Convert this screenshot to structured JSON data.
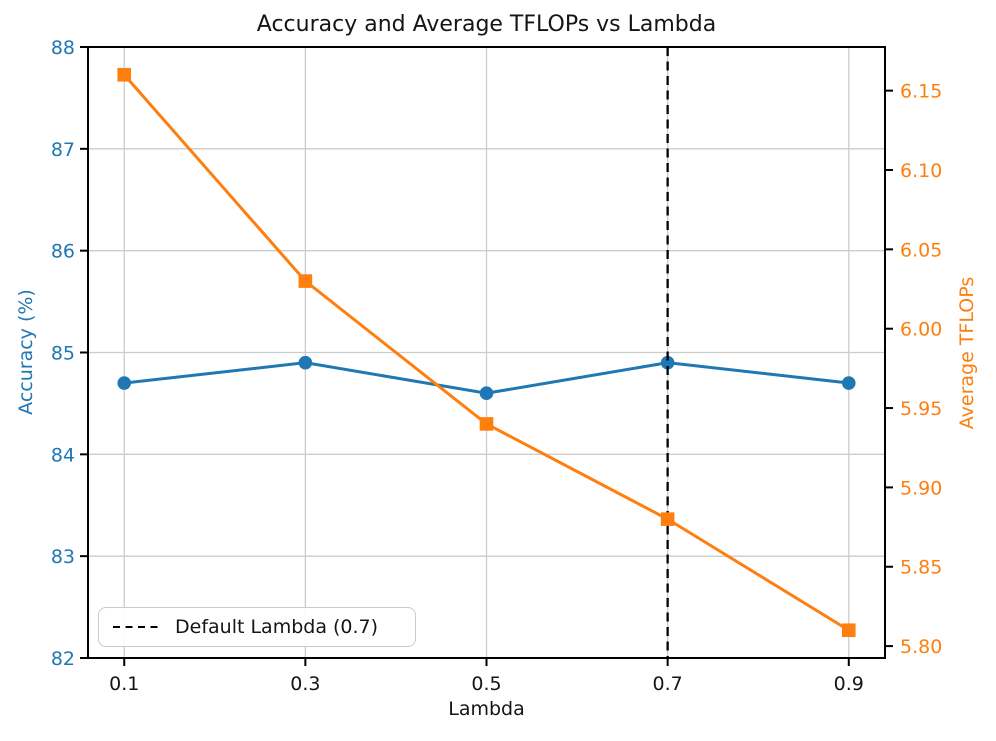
{
  "chart_data": {
    "type": "line",
    "title": "Accuracy and Average TFLOPs vs Lambda",
    "xlabel": "Lambda",
    "grid": true,
    "x": [
      0.1,
      0.3,
      0.5,
      0.7,
      0.9
    ],
    "xlim": [
      0.06,
      0.94
    ],
    "xticks": [
      0.1,
      0.3,
      0.5,
      0.7,
      0.9
    ],
    "xtick_labels": [
      "0.1",
      "0.3",
      "0.5",
      "0.7",
      "0.9"
    ],
    "series": [
      {
        "id": "accuracy",
        "name": "Accuracy (%)",
        "axis": "left",
        "marker": "circle",
        "color": "#1f77b4",
        "values": [
          84.7,
          84.9,
          84.6,
          84.9,
          84.7
        ]
      },
      {
        "id": "tflops",
        "name": "Average TFLOPs",
        "axis": "right",
        "marker": "square",
        "color": "#ff7f0e",
        "values": [
          6.16,
          6.03,
          5.94,
          5.88,
          5.81
        ]
      }
    ],
    "left_axis": {
      "label": "Accuracy (%)",
      "color": "#1f77b4",
      "ylim": [
        82,
        88
      ],
      "ticks": [
        82,
        83,
        84,
        85,
        86,
        87,
        88
      ],
      "tick_labels": [
        "82",
        "83",
        "84",
        "85",
        "86",
        "87",
        "88"
      ]
    },
    "right_axis": {
      "label": "Average TFLOPs",
      "color": "#ff7f0e",
      "ylim": [
        5.7925,
        6.1775
      ],
      "ticks": [
        5.8,
        5.85,
        5.9,
        5.95,
        6.0,
        6.05,
        6.1,
        6.15
      ],
      "tick_labels": [
        "5.80",
        "5.85",
        "5.90",
        "5.95",
        "6.00",
        "6.05",
        "6.10",
        "6.15"
      ]
    },
    "vline": {
      "x": 0.7,
      "color": "#000000",
      "style": "dashed"
    },
    "legend": {
      "label": "Default Lambda (0.7)",
      "location": "lower left"
    },
    "colors": {
      "grid": "#cccccc",
      "spine": "#000000",
      "tick_text": "#151515",
      "background": "#ffffff"
    }
  }
}
